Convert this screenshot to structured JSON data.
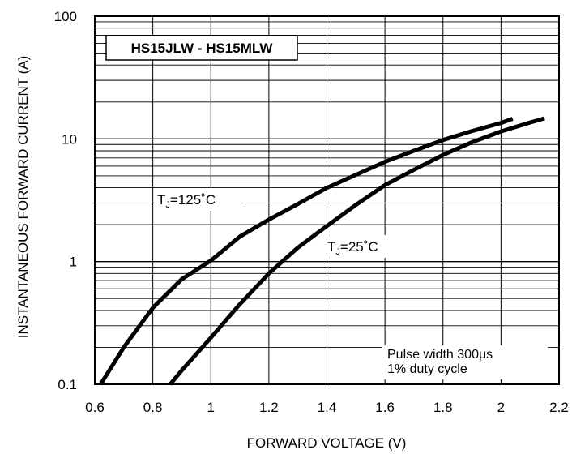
{
  "chart_data": {
    "type": "line",
    "title": "HS15JLW - HS15MLW",
    "xlabel": "FORWARD VOLTAGE (V)",
    "ylabel": "INSTANTANEOUS FORWARD CURRENT (A)",
    "xlim": [
      0.6,
      2.2
    ],
    "ylim": [
      0.1,
      100
    ],
    "yscale": "log",
    "grid": true,
    "x_ticks": [
      "0.6",
      "0.8",
      "1",
      "1.2",
      "1.4",
      "1.6",
      "1.8",
      "2",
      "2.2"
    ],
    "y_ticks": [
      "0.1",
      "1",
      "10",
      "100"
    ],
    "series": [
      {
        "label_main": "T",
        "label_sub": "J",
        "label_rest": "=125˚C",
        "points": [
          [
            0.62,
            0.1
          ],
          [
            0.7,
            0.2
          ],
          [
            0.8,
            0.42
          ],
          [
            0.9,
            0.72
          ],
          [
            1.0,
            1.02
          ],
          [
            1.1,
            1.6
          ],
          [
            1.2,
            2.2
          ],
          [
            1.3,
            2.95
          ],
          [
            1.4,
            4.0
          ],
          [
            1.5,
            5.1
          ],
          [
            1.6,
            6.5
          ],
          [
            1.7,
            8.0
          ],
          [
            1.8,
            9.8
          ],
          [
            1.9,
            11.6
          ],
          [
            2.0,
            13.5
          ],
          [
            2.04,
            14.6
          ]
        ]
      },
      {
        "label_main": "T",
        "label_sub": "J",
        "label_rest": "=25˚C",
        "points": [
          [
            0.86,
            0.1
          ],
          [
            0.9,
            0.13
          ],
          [
            1.0,
            0.24
          ],
          [
            1.1,
            0.45
          ],
          [
            1.2,
            0.8
          ],
          [
            1.3,
            1.3
          ],
          [
            1.4,
            1.95
          ],
          [
            1.5,
            2.9
          ],
          [
            1.6,
            4.2
          ],
          [
            1.7,
            5.6
          ],
          [
            1.8,
            7.4
          ],
          [
            1.9,
            9.4
          ],
          [
            2.0,
            11.5
          ],
          [
            2.1,
            13.6
          ],
          [
            2.15,
            14.7
          ]
        ]
      }
    ],
    "note_lines": [
      "Pulse width 300μs",
      "1% duty cycle"
    ]
  }
}
